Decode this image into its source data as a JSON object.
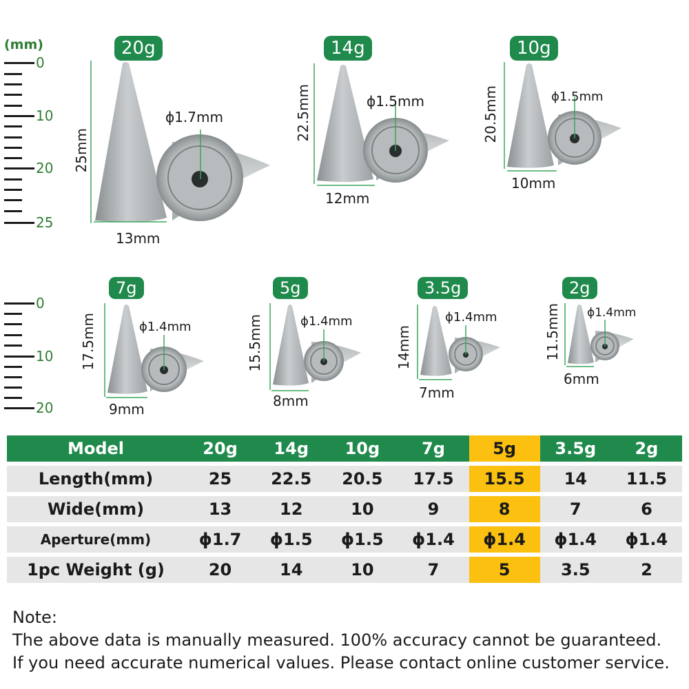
{
  "ruler_top": {
    "unit": "(mm)",
    "labels": [
      "0",
      "10",
      "20",
      "25"
    ]
  },
  "ruler_bottom": {
    "labels": [
      "0",
      "10",
      "20"
    ]
  },
  "products": [
    {
      "tag": "20g",
      "length": "25mm",
      "width": "13mm",
      "aperture": "ϕ1.7mm"
    },
    {
      "tag": "14g",
      "length": "22.5mm",
      "width": "12mm",
      "aperture": "ϕ1.5mm"
    },
    {
      "tag": "10g",
      "length": "20.5mm",
      "width": "10mm",
      "aperture": "ϕ1.5mm"
    },
    {
      "tag": "7g",
      "length": "17.5mm",
      "width": "9mm",
      "aperture": "ϕ1.4mm"
    },
    {
      "tag": "5g",
      "length": "15.5mm",
      "width": "8mm",
      "aperture": "ϕ1.4mm"
    },
    {
      "tag": "3.5g",
      "length": "14mm",
      "width": "7mm",
      "aperture": "ϕ1.4mm"
    },
    {
      "tag": "2g",
      "length": "11.5mm",
      "width": "6mm",
      "aperture": "ϕ1.4mm"
    }
  ],
  "table": {
    "header": [
      "Model",
      "20g",
      "14g",
      "10g",
      "7g",
      "5g",
      "3.5g",
      "2g"
    ],
    "rows": [
      {
        "label": "Length(mm)",
        "values": [
          "25",
          "22.5",
          "20.5",
          "17.5",
          "15.5",
          "14",
          "11.5"
        ]
      },
      {
        "label": "Wide(mm)",
        "values": [
          "13",
          "12",
          "10",
          "9",
          "8",
          "7",
          "6"
        ]
      },
      {
        "label": "Aperture(mm)",
        "values": [
          "ϕ1.7",
          "ϕ1.5",
          "ϕ1.5",
          "ϕ1.4",
          "ϕ1.4",
          "ϕ1.4",
          "ϕ1.4"
        ]
      },
      {
        "label": "1pc Weight (g)",
        "values": [
          "20",
          "14",
          "10",
          "7",
          "5",
          "3.5",
          "2"
        ]
      }
    ],
    "highlight_color": "#fbc010",
    "header_color": "#1f8a4c"
  },
  "note": {
    "title": "Note:",
    "line1": "The above data is manually measured. 100% accuracy cannot be guaranteed.",
    "line2": "If you need accurate numerical values. Please contact online customer service."
  }
}
